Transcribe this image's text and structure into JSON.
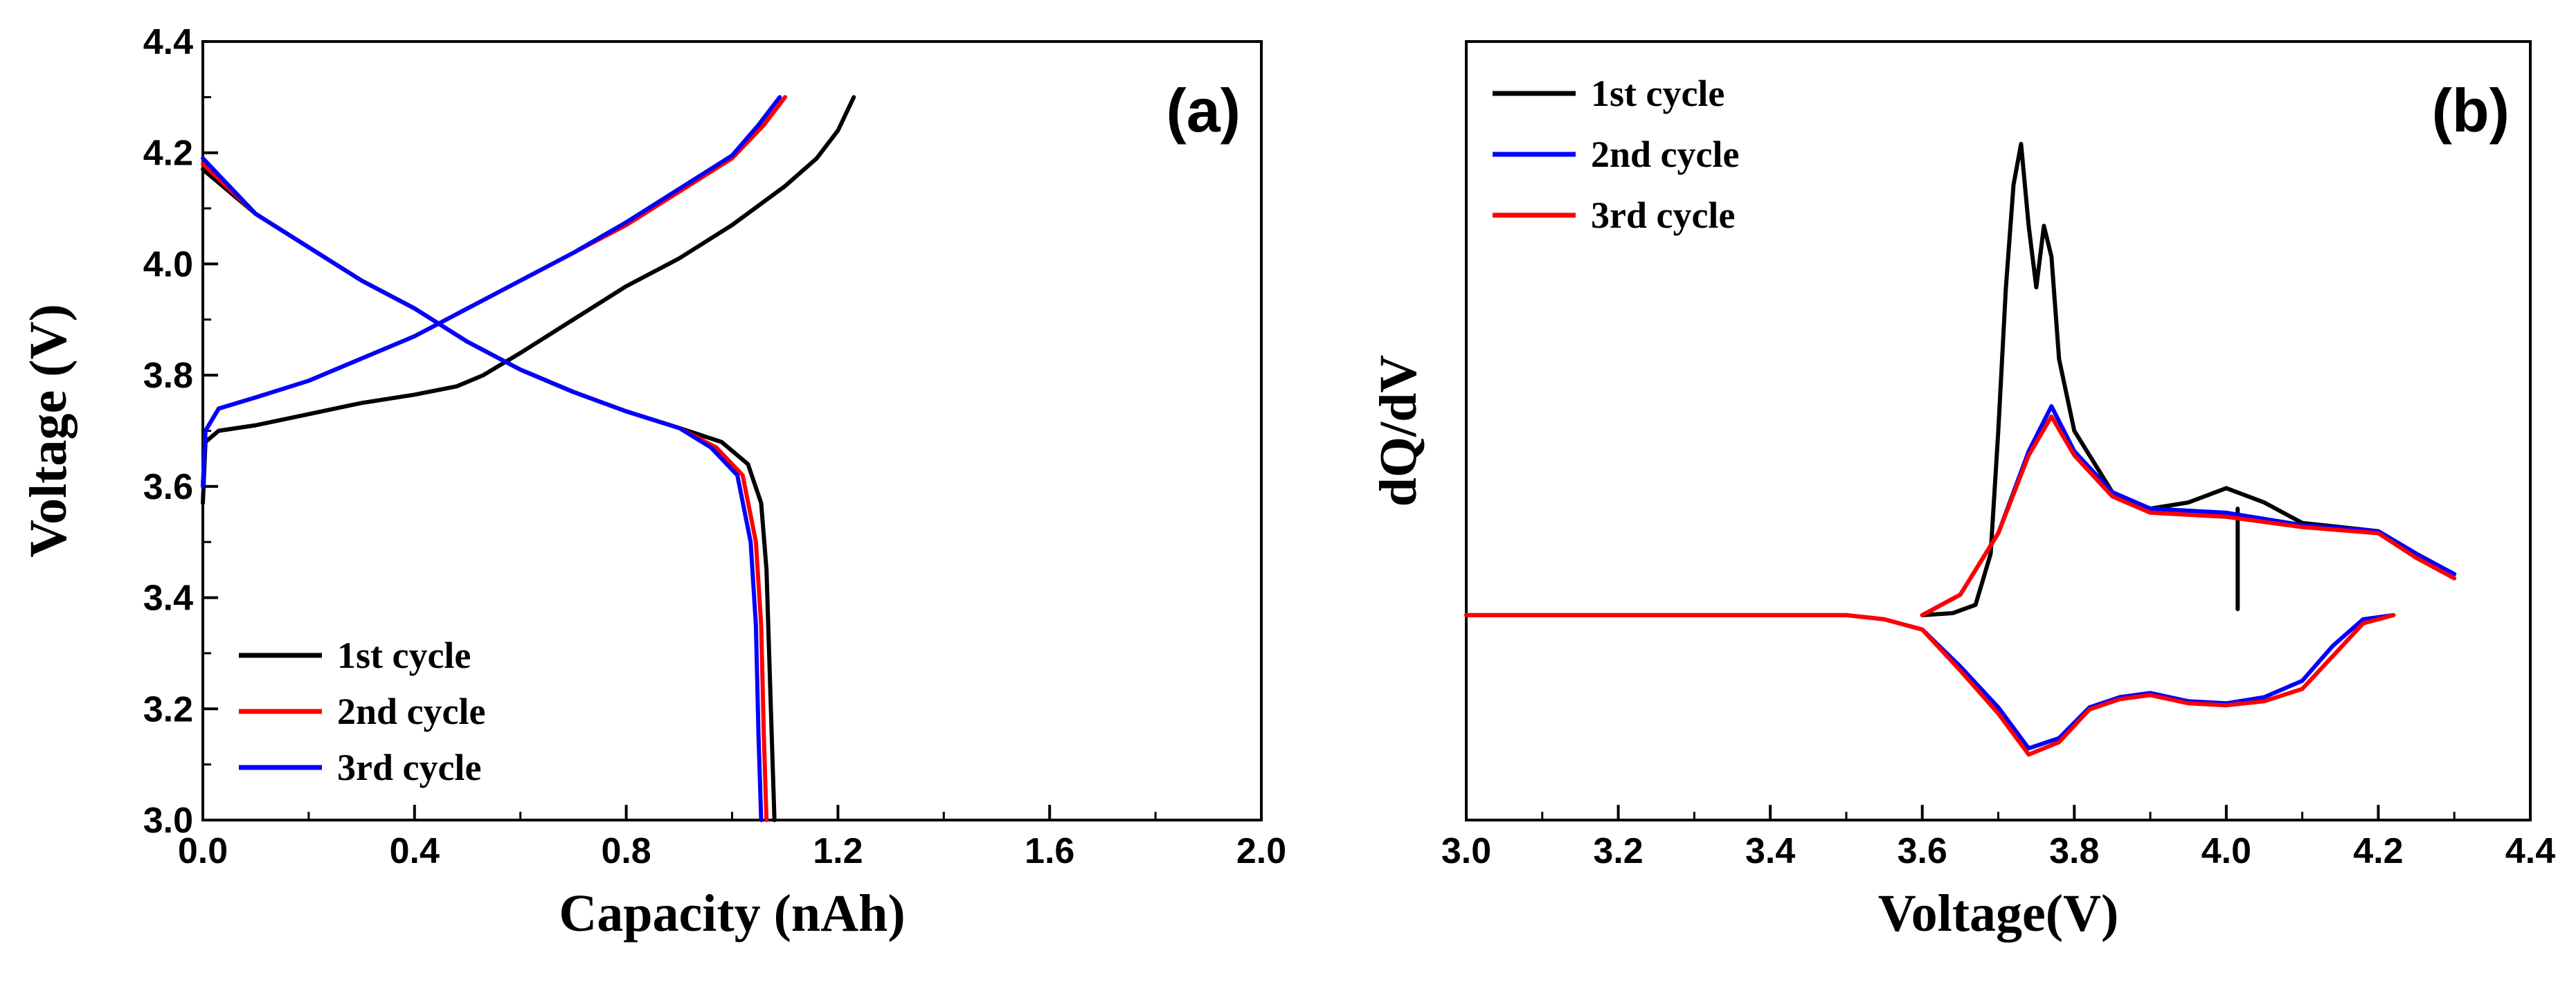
{
  "chart_data": [
    {
      "type": "line",
      "panel_label": "(a)",
      "xlabel": "Capacity (nAh)",
      "ylabel": "Voltage (V)",
      "xlim": [
        0.0,
        2.0
      ],
      "ylim": [
        3.0,
        4.4
      ],
      "xticks": [
        "0.0",
        "0.4",
        "0.8",
        "1.2",
        "1.6",
        "2.0"
      ],
      "yticks": [
        "3.0",
        "3.2",
        "3.4",
        "3.6",
        "3.8",
        "4.0",
        "4.2",
        "4.4"
      ],
      "legend_position": "bottom-left",
      "legend": [
        "1st cycle",
        "2nd cycle",
        "3rd cycle"
      ],
      "series": [
        {
          "name": "1st cycle",
          "color": "#000000",
          "segments": [
            [
              [
                0.0,
                3.57
              ],
              [
                0.005,
                3.68
              ],
              [
                0.03,
                3.7
              ],
              [
                0.1,
                3.71
              ],
              [
                0.2,
                3.73
              ],
              [
                0.3,
                3.75
              ],
              [
                0.4,
                3.765
              ],
              [
                0.48,
                3.78
              ],
              [
                0.53,
                3.8
              ],
              [
                0.6,
                3.84
              ],
              [
                0.7,
                3.9
              ],
              [
                0.8,
                3.96
              ],
              [
                0.9,
                4.01
              ],
              [
                1.0,
                4.07
              ],
              [
                1.1,
                4.14
              ],
              [
                1.16,
                4.19
              ],
              [
                1.2,
                4.24
              ],
              [
                1.23,
                4.3
              ]
            ],
            [
              [
                0.0,
                4.17
              ],
              [
                0.1,
                4.09
              ],
              [
                0.2,
                4.03
              ],
              [
                0.3,
                3.97
              ],
              [
                0.4,
                3.92
              ],
              [
                0.5,
                3.86
              ],
              [
                0.6,
                3.81
              ],
              [
                0.7,
                3.77
              ],
              [
                0.8,
                3.735
              ],
              [
                0.9,
                3.705
              ],
              [
                0.98,
                3.68
              ],
              [
                1.03,
                3.64
              ],
              [
                1.055,
                3.57
              ],
              [
                1.065,
                3.45
              ],
              [
                1.07,
                3.3
              ],
              [
                1.075,
                3.15
              ],
              [
                1.08,
                3.0
              ]
            ]
          ]
        },
        {
          "name": "2nd cycle",
          "color": "#ff0000",
          "segments": [
            [
              [
                0.0,
                3.6
              ],
              [
                0.005,
                3.7
              ],
              [
                0.03,
                3.74
              ],
              [
                0.1,
                3.76
              ],
              [
                0.2,
                3.79
              ],
              [
                0.3,
                3.83
              ],
              [
                0.4,
                3.87
              ],
              [
                0.5,
                3.92
              ],
              [
                0.6,
                3.97
              ],
              [
                0.7,
                4.02
              ],
              [
                0.8,
                4.07
              ],
              [
                0.9,
                4.13
              ],
              [
                1.0,
                4.19
              ],
              [
                1.06,
                4.25
              ],
              [
                1.1,
                4.3
              ]
            ],
            [
              [
                0.0,
                4.18
              ],
              [
                0.1,
                4.09
              ],
              [
                0.2,
                4.03
              ],
              [
                0.3,
                3.97
              ],
              [
                0.4,
                3.92
              ],
              [
                0.5,
                3.86
              ],
              [
                0.6,
                3.81
              ],
              [
                0.7,
                3.77
              ],
              [
                0.8,
                3.735
              ],
              [
                0.9,
                3.705
              ],
              [
                0.97,
                3.67
              ],
              [
                1.02,
                3.62
              ],
              [
                1.045,
                3.5
              ],
              [
                1.055,
                3.35
              ],
              [
                1.06,
                3.15
              ],
              [
                1.065,
                3.0
              ]
            ]
          ]
        },
        {
          "name": "3rd cycle",
          "color": "#0000ff",
          "segments": [
            [
              [
                0.0,
                3.6
              ],
              [
                0.005,
                3.7
              ],
              [
                0.03,
                3.74
              ],
              [
                0.1,
                3.76
              ],
              [
                0.2,
                3.79
              ],
              [
                0.3,
                3.83
              ],
              [
                0.4,
                3.87
              ],
              [
                0.5,
                3.92
              ],
              [
                0.6,
                3.97
              ],
              [
                0.7,
                4.02
              ],
              [
                0.8,
                4.075
              ],
              [
                0.9,
                4.135
              ],
              [
                1.0,
                4.195
              ],
              [
                1.05,
                4.25
              ],
              [
                1.09,
                4.3
              ]
            ],
            [
              [
                0.0,
                4.19
              ],
              [
                0.1,
                4.09
              ],
              [
                0.2,
                4.03
              ],
              [
                0.3,
                3.97
              ],
              [
                0.4,
                3.92
              ],
              [
                0.5,
                3.86
              ],
              [
                0.6,
                3.81
              ],
              [
                0.7,
                3.77
              ],
              [
                0.8,
                3.735
              ],
              [
                0.9,
                3.705
              ],
              [
                0.96,
                3.67
              ],
              [
                1.01,
                3.62
              ],
              [
                1.035,
                3.5
              ],
              [
                1.045,
                3.35
              ],
              [
                1.05,
                3.15
              ],
              [
                1.055,
                3.0
              ]
            ]
          ]
        }
      ]
    },
    {
      "type": "line",
      "panel_label": "(b)",
      "xlabel": "Voltage(V)",
      "ylabel": "dQ/dV",
      "xlim": [
        3.0,
        4.4
      ],
      "ylim": [
        -1.0,
        2.8
      ],
      "xticks": [
        "3.0",
        "3.2",
        "3.4",
        "3.6",
        "3.8",
        "4.0",
        "4.2",
        "4.4"
      ],
      "yticks": [],
      "legend_position": "top-left",
      "legend": [
        "1st cycle",
        "2nd cycle",
        "3rd cycle"
      ],
      "series": [
        {
          "name": "1st cycle",
          "color": "#000000",
          "segments": [
            [
              [
                3.6,
                0.0
              ],
              [
                3.64,
                0.01
              ],
              [
                3.67,
                0.05
              ],
              [
                3.69,
                0.3
              ],
              [
                3.7,
                0.9
              ],
              [
                3.71,
                1.6
              ],
              [
                3.72,
                2.1
              ],
              [
                3.73,
                2.3
              ],
              [
                3.74,
                1.9
              ],
              [
                3.75,
                1.6
              ],
              [
                3.76,
                1.9
              ],
              [
                3.77,
                1.75
              ],
              [
                3.78,
                1.25
              ],
              [
                3.8,
                0.9
              ],
              [
                3.85,
                0.6
              ],
              [
                3.9,
                0.52
              ],
              [
                3.95,
                0.55
              ],
              [
                4.0,
                0.62
              ],
              [
                4.05,
                0.55
              ],
              [
                4.1,
                0.45
              ],
              [
                4.15,
                0.43
              ],
              [
                4.2,
                0.41
              ],
              [
                4.25,
                0.3
              ],
              [
                4.3,
                0.2
              ]
            ],
            [
              [
                4.015,
                0.52
              ],
              [
                4.015,
                0.03
              ]
            ]
          ]
        },
        {
          "name": "2nd cycle",
          "color": "#0000ff",
          "segments": [
            [
              [
                3.6,
                0.0
              ],
              [
                3.65,
                0.1
              ],
              [
                3.7,
                0.4
              ],
              [
                3.74,
                0.8
              ],
              [
                3.77,
                1.02
              ],
              [
                3.8,
                0.8
              ],
              [
                3.85,
                0.6
              ],
              [
                3.9,
                0.52
              ],
              [
                4.0,
                0.5
              ],
              [
                4.1,
                0.44
              ],
              [
                4.2,
                0.41
              ],
              [
                4.25,
                0.3
              ],
              [
                4.3,
                0.2
              ]
            ],
            [
              [
                3.0,
                0.0
              ],
              [
                3.5,
                0.0
              ],
              [
                3.55,
                -0.02
              ],
              [
                3.6,
                -0.07
              ],
              [
                3.65,
                -0.25
              ],
              [
                3.7,
                -0.45
              ],
              [
                3.74,
                -0.65
              ],
              [
                3.78,
                -0.6
              ],
              [
                3.82,
                -0.45
              ],
              [
                3.86,
                -0.4
              ],
              [
                3.9,
                -0.38
              ],
              [
                3.95,
                -0.42
              ],
              [
                4.0,
                -0.43
              ],
              [
                4.05,
                -0.4
              ],
              [
                4.1,
                -0.32
              ],
              [
                4.14,
                -0.15
              ],
              [
                4.18,
                -0.02
              ],
              [
                4.22,
                0.0
              ]
            ]
          ]
        },
        {
          "name": "3rd cycle",
          "color": "#ff0000",
          "segments": [
            [
              [
                3.6,
                0.0
              ],
              [
                3.65,
                0.1
              ],
              [
                3.7,
                0.4
              ],
              [
                3.74,
                0.78
              ],
              [
                3.77,
                0.97
              ],
              [
                3.8,
                0.78
              ],
              [
                3.85,
                0.58
              ],
              [
                3.9,
                0.5
              ],
              [
                4.0,
                0.48
              ],
              [
                4.1,
                0.43
              ],
              [
                4.2,
                0.4
              ],
              [
                4.25,
                0.28
              ],
              [
                4.3,
                0.18
              ]
            ],
            [
              [
                3.0,
                0.0
              ],
              [
                3.5,
                0.0
              ],
              [
                3.55,
                -0.02
              ],
              [
                3.6,
                -0.07
              ],
              [
                3.65,
                -0.27
              ],
              [
                3.7,
                -0.48
              ],
              [
                3.74,
                -0.68
              ],
              [
                3.78,
                -0.62
              ],
              [
                3.82,
                -0.46
              ],
              [
                3.86,
                -0.41
              ],
              [
                3.9,
                -0.39
              ],
              [
                3.95,
                -0.43
              ],
              [
                4.0,
                -0.44
              ],
              [
                4.05,
                -0.42
              ],
              [
                4.1,
                -0.36
              ],
              [
                4.14,
                -0.2
              ],
              [
                4.18,
                -0.04
              ],
              [
                4.22,
                0.0
              ]
            ]
          ]
        }
      ]
    }
  ]
}
